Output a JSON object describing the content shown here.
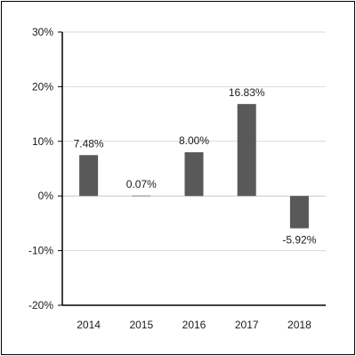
{
  "chart_data": {
    "type": "bar",
    "categories": [
      "2014",
      "2015",
      "2016",
      "2017",
      "2018"
    ],
    "values": [
      7.48,
      0.07,
      8.0,
      16.83,
      -5.92
    ],
    "data_labels": [
      "7.48%",
      "0.07%",
      "8.00%",
      "16.83%",
      "-5.92%"
    ],
    "ylim": [
      -20,
      30
    ],
    "yticks": [
      -20,
      -10,
      0,
      10,
      20,
      30
    ],
    "ytick_labels": [
      "-20%",
      "-10%",
      "0%",
      "10%",
      "20%",
      "30%"
    ],
    "grid": true,
    "legend": "none",
    "colors": {
      "bar": "#595959",
      "grid": "#d9d9d9",
      "axis": "#000000",
      "text": "#1a1a1a"
    }
  }
}
